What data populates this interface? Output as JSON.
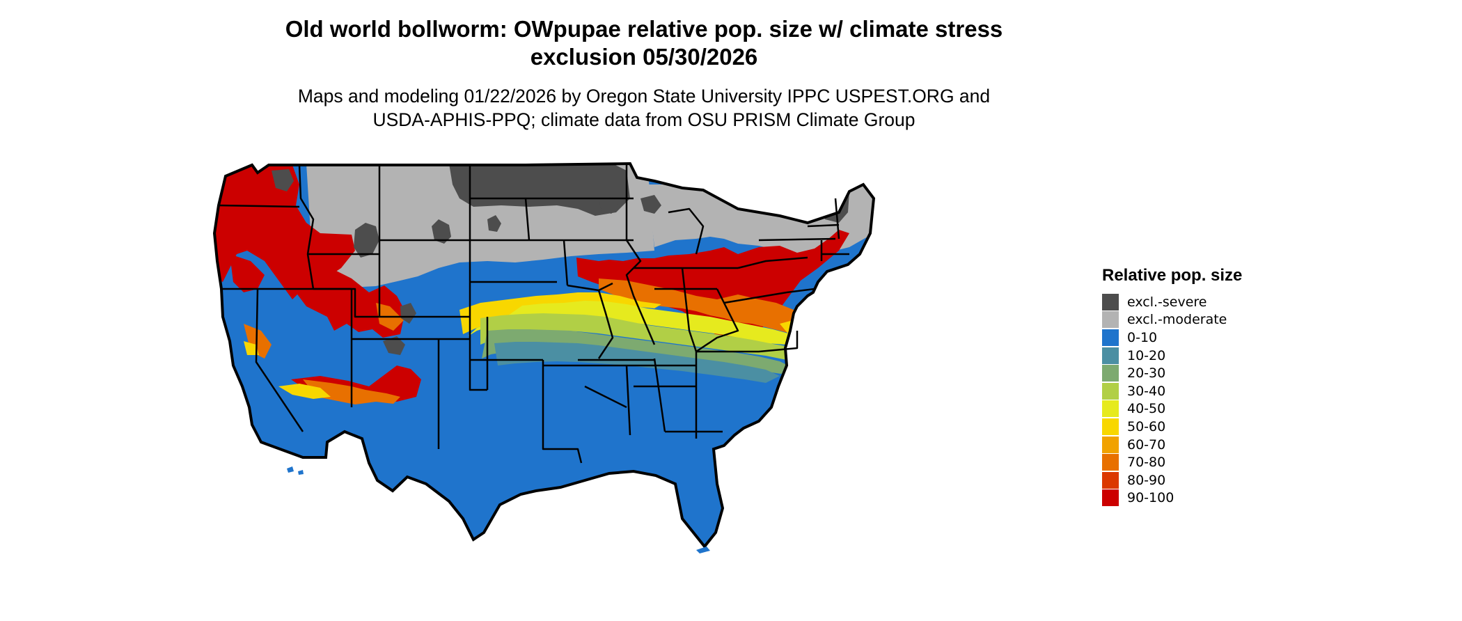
{
  "title_line1": "Old world bollworm: OWpupae relative pop. size w/ climate stress",
  "title_line2": "exclusion 05/30/2026",
  "subtitle_line1": "Maps and modeling 01/22/2026 by Oregon State University IPPC USPEST.ORG and",
  "subtitle_line2": "USDA-APHIS-PPQ; climate data from OSU PRISM Climate Group",
  "legend": {
    "title": "Relative pop. size",
    "items": [
      {
        "label": "excl.-severe",
        "color": "#4d4d4d"
      },
      {
        "label": "excl.-moderate",
        "color": "#b3b3b3"
      },
      {
        "label": "0-10",
        "color": "#1f74cc"
      },
      {
        "label": "10-20",
        "color": "#4b8fa3"
      },
      {
        "label": "20-30",
        "color": "#7daa70"
      },
      {
        "label": "30-40",
        "color": "#b1cf46"
      },
      {
        "label": "40-50",
        "color": "#e6ea1e"
      },
      {
        "label": "50-60",
        "color": "#f8d700"
      },
      {
        "label": "60-70",
        "color": "#f1a200"
      },
      {
        "label": "70-80",
        "color": "#e87000"
      },
      {
        "label": "80-90",
        "color": "#db3800"
      },
      {
        "label": "90-100",
        "color": "#cc0000"
      }
    ]
  }
}
